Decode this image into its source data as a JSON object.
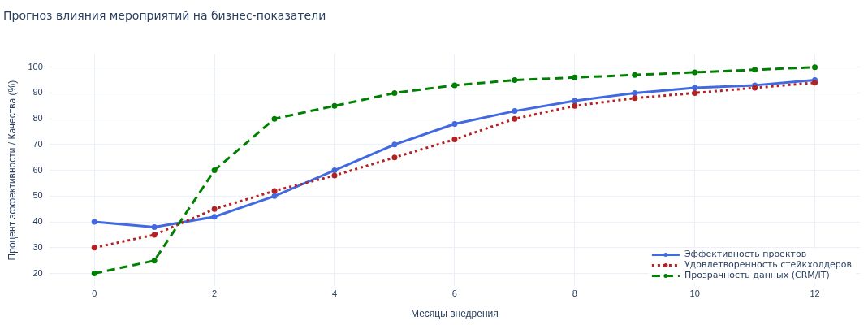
{
  "chart_data": {
    "type": "line",
    "title": "Прогноз влияния мероприятий на бизнес-показатели",
    "xlabel": "Месяцы внедрения",
    "ylabel": "Процент эффективности / Качества (%)",
    "x": [
      0,
      1,
      2,
      3,
      4,
      5,
      6,
      7,
      8,
      9,
      10,
      11,
      12
    ],
    "series": [
      {
        "name": "Эффективность проектов",
        "color": "#4169e1",
        "line_style": "solid",
        "values": [
          40,
          38,
          42,
          50,
          60,
          70,
          78,
          83,
          87,
          90,
          92,
          93,
          95
        ]
      },
      {
        "name": "Удовлетворенность стейкхолдеров",
        "color": "#b22222",
        "line_style": "dotted",
        "values": [
          30,
          35,
          45,
          52,
          58,
          65,
          72,
          80,
          85,
          88,
          90,
          92,
          94
        ]
      },
      {
        "name": "Прозрачность данных (CRM/IT)",
        "color": "#008000",
        "line_style": "dashed",
        "values": [
          20,
          25,
          60,
          80,
          85,
          90,
          93,
          95,
          96,
          97,
          98,
          99,
          100
        ]
      }
    ],
    "xlim": [
      -0.75,
      12.75
    ],
    "xticks": [
      0,
      2,
      4,
      6,
      8,
      10,
      12
    ],
    "ylim": [
      15,
      105
    ],
    "yticks": [
      20,
      30,
      40,
      50,
      60,
      70,
      80,
      90,
      100
    ],
    "grid": true,
    "legend": "bottom right",
    "marker": "circle"
  }
}
